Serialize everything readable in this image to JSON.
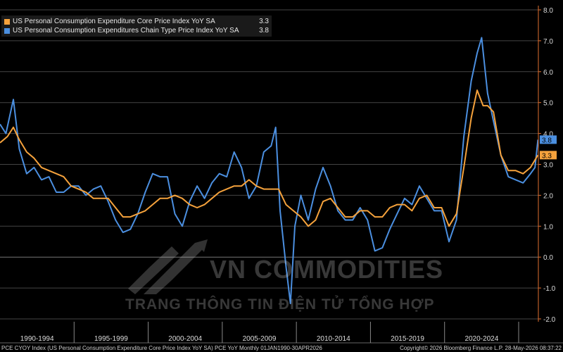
{
  "chart_data": {
    "type": "line",
    "ylim": [
      -2.0,
      8.0
    ],
    "yticks": [
      "-2.0",
      "-1.0",
      "0.0",
      "1.0",
      "2.0",
      "3.0",
      "4.0",
      "5.0",
      "6.0",
      "7.0",
      "8.0"
    ],
    "xlim": [
      1990.0,
      2026.33
    ],
    "period_labels": [
      "1990-1994",
      "1995-1999",
      "2000-2004",
      "2005-2009",
      "2010-2014",
      "2015-2019",
      "2020-2024"
    ],
    "grid": true,
    "legend_position": "top-left",
    "series": [
      {
        "name": "US Personal Consumption Expenditure Core Price Index YoY SA",
        "last_value": "3.3",
        "color": "#f5a23c",
        "points": [
          [
            1990.0,
            3.7
          ],
          [
            1990.5,
            3.9
          ],
          [
            1990.9,
            4.2
          ],
          [
            1991.3,
            3.8
          ],
          [
            1991.8,
            3.4
          ],
          [
            1992.3,
            3.2
          ],
          [
            1992.8,
            2.9
          ],
          [
            1993.3,
            2.8
          ],
          [
            1993.8,
            2.7
          ],
          [
            1994.3,
            2.6
          ],
          [
            1994.8,
            2.3
          ],
          [
            1995.3,
            2.2
          ],
          [
            1995.8,
            2.1
          ],
          [
            1996.3,
            1.9
          ],
          [
            1996.8,
            1.9
          ],
          [
            1997.3,
            1.9
          ],
          [
            1997.8,
            1.6
          ],
          [
            1998.3,
            1.3
          ],
          [
            1998.8,
            1.3
          ],
          [
            1999.3,
            1.4
          ],
          [
            1999.8,
            1.5
          ],
          [
            2000.3,
            1.7
          ],
          [
            2000.8,
            1.9
          ],
          [
            2001.3,
            1.9
          ],
          [
            2001.8,
            2.0
          ],
          [
            2002.3,
            1.9
          ],
          [
            2002.8,
            1.7
          ],
          [
            2003.3,
            1.6
          ],
          [
            2003.8,
            1.7
          ],
          [
            2004.3,
            1.9
          ],
          [
            2004.8,
            2.1
          ],
          [
            2005.3,
            2.2
          ],
          [
            2005.8,
            2.3
          ],
          [
            2006.3,
            2.3
          ],
          [
            2006.8,
            2.5
          ],
          [
            2007.3,
            2.3
          ],
          [
            2007.8,
            2.2
          ],
          [
            2008.3,
            2.2
          ],
          [
            2008.8,
            2.2
          ],
          [
            2009.3,
            1.7
          ],
          [
            2009.8,
            1.5
          ],
          [
            2010.3,
            1.3
          ],
          [
            2010.8,
            1.0
          ],
          [
            2011.3,
            1.2
          ],
          [
            2011.8,
            1.8
          ],
          [
            2012.3,
            1.9
          ],
          [
            2012.8,
            1.6
          ],
          [
            2013.3,
            1.3
          ],
          [
            2013.8,
            1.3
          ],
          [
            2014.3,
            1.5
          ],
          [
            2014.8,
            1.5
          ],
          [
            2015.3,
            1.3
          ],
          [
            2015.8,
            1.3
          ],
          [
            2016.3,
            1.6
          ],
          [
            2016.8,
            1.7
          ],
          [
            2017.3,
            1.7
          ],
          [
            2017.8,
            1.5
          ],
          [
            2018.3,
            1.9
          ],
          [
            2018.8,
            2.0
          ],
          [
            2019.3,
            1.6
          ],
          [
            2019.8,
            1.6
          ],
          [
            2020.3,
            1.0
          ],
          [
            2020.8,
            1.4
          ],
          [
            2021.3,
            2.9
          ],
          [
            2021.8,
            4.5
          ],
          [
            2022.2,
            5.4
          ],
          [
            2022.6,
            4.9
          ],
          [
            2022.9,
            4.9
          ],
          [
            2023.3,
            4.7
          ],
          [
            2023.8,
            3.3
          ],
          [
            2024.3,
            2.8
          ],
          [
            2024.8,
            2.8
          ],
          [
            2025.3,
            2.7
          ],
          [
            2025.8,
            2.9
          ],
          [
            2026.3,
            3.3
          ]
        ]
      },
      {
        "name": "US Personal Consumption Expenditures Chain Type Price Index YoY SA",
        "last_value": "3.8",
        "color": "#4b8fe0",
        "points": [
          [
            1990.0,
            4.3
          ],
          [
            1990.4,
            4.0
          ],
          [
            1990.9,
            5.1
          ],
          [
            1991.3,
            3.5
          ],
          [
            1991.8,
            2.7
          ],
          [
            1992.3,
            2.9
          ],
          [
            1992.8,
            2.5
          ],
          [
            1993.3,
            2.6
          ],
          [
            1993.8,
            2.1
          ],
          [
            1994.3,
            2.1
          ],
          [
            1994.8,
            2.3
          ],
          [
            1995.3,
            2.3
          ],
          [
            1995.8,
            2.0
          ],
          [
            1996.3,
            2.2
          ],
          [
            1996.8,
            2.3
          ],
          [
            1997.3,
            1.8
          ],
          [
            1997.8,
            1.2
          ],
          [
            1998.3,
            0.8
          ],
          [
            1998.8,
            0.9
          ],
          [
            1999.3,
            1.4
          ],
          [
            1999.8,
            2.1
          ],
          [
            2000.3,
            2.7
          ],
          [
            2000.8,
            2.6
          ],
          [
            2001.3,
            2.6
          ],
          [
            2001.8,
            1.4
          ],
          [
            2002.3,
            1.0
          ],
          [
            2002.8,
            1.8
          ],
          [
            2003.3,
            2.3
          ],
          [
            2003.8,
            1.9
          ],
          [
            2004.3,
            2.4
          ],
          [
            2004.8,
            2.7
          ],
          [
            2005.3,
            2.6
          ],
          [
            2005.8,
            3.4
          ],
          [
            2006.3,
            2.9
          ],
          [
            2006.8,
            1.9
          ],
          [
            2007.3,
            2.3
          ],
          [
            2007.8,
            3.4
          ],
          [
            2008.3,
            3.6
          ],
          [
            2008.6,
            4.2
          ],
          [
            2008.9,
            1.5
          ],
          [
            2009.3,
            -0.3
          ],
          [
            2009.6,
            -1.5
          ],
          [
            2009.9,
            1.0
          ],
          [
            2010.3,
            2.0
          ],
          [
            2010.8,
            1.2
          ],
          [
            2011.3,
            2.2
          ],
          [
            2011.8,
            2.9
          ],
          [
            2012.3,
            2.3
          ],
          [
            2012.8,
            1.5
          ],
          [
            2013.3,
            1.2
          ],
          [
            2013.8,
            1.2
          ],
          [
            2014.3,
            1.6
          ],
          [
            2014.8,
            1.2
          ],
          [
            2015.3,
            0.2
          ],
          [
            2015.8,
            0.3
          ],
          [
            2016.3,
            0.9
          ],
          [
            2016.8,
            1.4
          ],
          [
            2017.3,
            1.9
          ],
          [
            2017.8,
            1.7
          ],
          [
            2018.3,
            2.3
          ],
          [
            2018.8,
            1.9
          ],
          [
            2019.3,
            1.5
          ],
          [
            2019.8,
            1.5
          ],
          [
            2020.3,
            0.5
          ],
          [
            2020.8,
            1.2
          ],
          [
            2021.3,
            3.9
          ],
          [
            2021.8,
            5.7
          ],
          [
            2022.2,
            6.6
          ],
          [
            2022.5,
            7.1
          ],
          [
            2022.9,
            5.3
          ],
          [
            2023.3,
            4.4
          ],
          [
            2023.8,
            3.3
          ],
          [
            2024.3,
            2.6
          ],
          [
            2024.8,
            2.5
          ],
          [
            2025.3,
            2.4
          ],
          [
            2025.8,
            2.7
          ],
          [
            2026.1,
            2.9
          ],
          [
            2026.3,
            3.8
          ]
        ]
      }
    ]
  },
  "watermark": {
    "title": "VN COMMODITIES",
    "subtitle": "TRANG THÔNG TIN ĐIỆN TỬ TỔNG HỢP"
  },
  "footer": {
    "left": "PCE CYOY Index (US Personal Consumption Expenditure Core Price Index YoY SA) PCE YoY Monthly 01JAN1990-30APR2026",
    "right": "Copyright© 2026 Bloomberg Finance L.P.     28-May-2026 08:37:22"
  }
}
